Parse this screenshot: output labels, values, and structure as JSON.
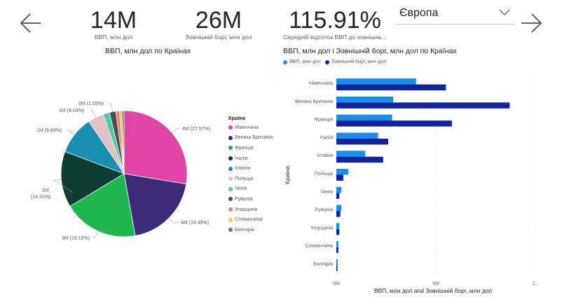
{
  "kpis": [
    {
      "value": "14M",
      "label": "ВВП, млн дол"
    },
    {
      "value": "26M",
      "label": "Зовнішній борг, млн дол"
    },
    {
      "value": "115.91%",
      "label": "Середній відсоток ВВП до зовнішнь..."
    }
  ],
  "region_select": {
    "selected": "Європа"
  },
  "colors": {
    "gdp": "#1a8fe8",
    "debt": "#12239e"
  },
  "pie": {
    "title": "ВВП, млн дол по Країнах",
    "legend_title": "Країна",
    "slices": [
      {
        "name": "Німеччина",
        "pct": 27.57,
        "label": "4M (27.57%)",
        "color": "#e044a7"
      },
      {
        "name": "Велика Британія",
        "pct": 19.49,
        "label": "3M (19.49%)",
        "color": "#3f2a78"
      },
      {
        "name": "Франція",
        "pct": 19.16,
        "label": "3M (19.16%)",
        "color": "#1fb650"
      },
      {
        "name": "Італія",
        "pct": 14.31,
        "label": "2M (14.31%)",
        "color": "#0f3d33"
      },
      {
        "name": "Іспанія",
        "pct": 9.84,
        "label": "1M (9.84%)",
        "color": "#1a8eb0"
      },
      {
        "name": "Польща",
        "pct": 4.04,
        "label": "1M (4.04%)",
        "color": "#e2c1c6"
      },
      {
        "name": "Чехія",
        "pct": 1.65,
        "label": "",
        "color": "#4fc9a8"
      },
      {
        "name": "Румунія",
        "pct": 1.65,
        "label": "0M (1.65%)",
        "color": "#4d4d4d"
      },
      {
        "name": "Угорщина",
        "pct": 0.9,
        "label": "",
        "color": "#f47878"
      },
      {
        "name": "Словаччина",
        "pct": 0.65,
        "label": "",
        "color": "#f5c84c"
      },
      {
        "name": "Болгарія",
        "pct": 0.52,
        "label": "",
        "color": "#6b7073"
      }
    ]
  },
  "chart_data": {
    "type": "bar",
    "orientation": "horizontal",
    "title": "ВВП, млн дол і Зовнішній борг, млн дол по Країнах",
    "ylabel": "Країна",
    "xlabel": "ВВП, млн дол and Зовнішній борг, млн дол",
    "categories": [
      "Німеччина",
      "Велика Британія",
      "Франція",
      "Італія",
      "Іспанія",
      "Польща",
      "Чехія",
      "Румунія",
      "Угорщина",
      "Словаччина",
      "Болгарія"
    ],
    "series": [
      {
        "name": "ВВП, млн дол",
        "values": [
          4.0,
          2.85,
          2.8,
          2.1,
          1.45,
          0.6,
          0.25,
          0.25,
          0.15,
          0.1,
          0.07
        ]
      },
      {
        "name": "Зовнішній борг, млн дол",
        "values": [
          5.5,
          8.7,
          5.8,
          2.6,
          2.35,
          0.35,
          0.15,
          0.2,
          0.15,
          0.1,
          0.05
        ]
      }
    ],
    "xticks": [
      "0M",
      "5M",
      "1..."
    ],
    "xlim": [
      0,
      10.2
    ],
    "legend_position": "top-left",
    "grid": true
  }
}
